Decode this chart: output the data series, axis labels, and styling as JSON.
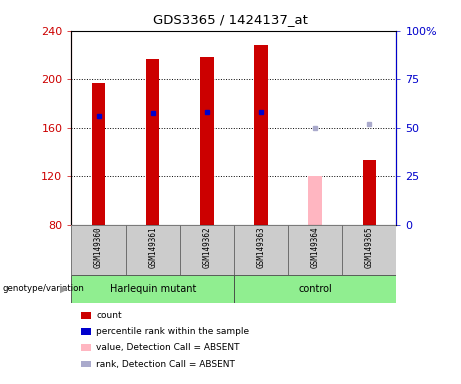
{
  "title": "GDS3365 / 1424137_at",
  "samples": [
    "GSM149360",
    "GSM149361",
    "GSM149362",
    "GSM149363",
    "GSM149364",
    "GSM149365"
  ],
  "group_labels": [
    "Harlequin mutant",
    "control"
  ],
  "ylim_left": [
    80,
    240
  ],
  "ylim_right": [
    0,
    100
  ],
  "yticks_left": [
    80,
    120,
    160,
    200,
    240
  ],
  "yticks_right": [
    0,
    25,
    50,
    75,
    100
  ],
  "count_values": [
    197,
    217,
    218,
    228,
    null,
    133
  ],
  "count_absent": [
    null,
    null,
    null,
    null,
    120,
    null
  ],
  "rank_values": [
    170,
    172,
    173,
    173,
    null,
    null
  ],
  "rank_absent": [
    null,
    null,
    null,
    null,
    160,
    163
  ],
  "bar_width": 0.25,
  "count_color": "#CC0000",
  "count_absent_color": "#FFB6C1",
  "rank_color": "#0000CC",
  "rank_absent_color": "#AAAACC",
  "left_axis_color": "#CC0000",
  "right_axis_color": "#0000CC",
  "bg_plot": "#FFFFFF",
  "bg_labels": "#CCCCCC",
  "bg_group": "#90EE90",
  "legend_items": [
    [
      "#CC0000",
      "count"
    ],
    [
      "#0000CC",
      "percentile rank within the sample"
    ],
    [
      "#FFB6C1",
      "value, Detection Call = ABSENT"
    ],
    [
      "#AAAACC",
      "rank, Detection Call = ABSENT"
    ]
  ]
}
